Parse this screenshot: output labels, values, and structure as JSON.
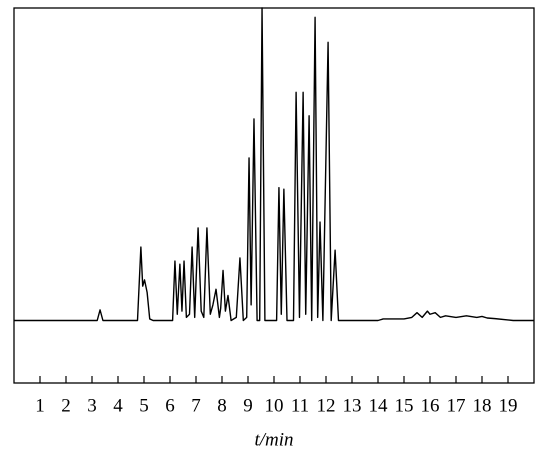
{
  "chart_data": {
    "type": "line",
    "x_label": "t/min",
    "xlim": [
      0,
      20
    ],
    "ylim": [
      -20,
      100
    ],
    "xticks": [
      1,
      2,
      3,
      4,
      5,
      6,
      7,
      8,
      9,
      10,
      11,
      12,
      13,
      14,
      15,
      16,
      17,
      18,
      19
    ],
    "color": "#000000",
    "x": [
      0,
      3.2,
      3.31,
      3.42,
      4.75,
      4.88,
      4.95,
      5.02,
      5.12,
      5.22,
      5.35,
      6.1,
      6.19,
      6.28,
      6.38,
      6.46,
      6.54,
      6.63,
      6.75,
      6.85,
      6.95,
      7.08,
      7.2,
      7.3,
      7.42,
      7.55,
      7.65,
      7.77,
      7.9,
      7.95,
      8.04,
      8.13,
      8.23,
      8.35,
      8.55,
      8.69,
      8.82,
      8.95,
      9.04,
      9.12,
      9.23,
      9.35,
      9.45,
      9.54,
      9.65,
      10.1,
      10.19,
      10.28,
      10.38,
      10.5,
      10.75,
      10.85,
      10.98,
      11.12,
      11.22,
      11.35,
      11.45,
      11.58,
      11.68,
      11.77,
      11.88,
      12.08,
      12.2,
      12.35,
      12.48,
      14,
      14.2,
      15,
      15.3,
      15.5,
      15.7,
      15.9,
      16,
      16.2,
      16.4,
      16.6,
      17,
      17.4,
      17.8,
      18,
      18.2,
      18.5,
      19.2,
      20
    ],
    "values": [
      0,
      0,
      3.4,
      0,
      0,
      23.5,
      11,
      13,
      9,
      0.5,
      0,
      0,
      19,
      2,
      18,
      3,
      19,
      1,
      2,
      23.5,
      1,
      29.6,
      3,
      1,
      29.6,
      2,
      5,
      10,
      1,
      4,
      16,
      3,
      8,
      0,
      1,
      20,
      0,
      1,
      52,
      5,
      64.5,
      0,
      0,
      100,
      0,
      0,
      42.5,
      2,
      42,
      0,
      0,
      73,
      1,
      73,
      2,
      65.5,
      0,
      97,
      1,
      31.5,
      0,
      89,
      0,
      22.5,
      0,
      0,
      0.5,
      0.5,
      1,
      2.5,
      1,
      3,
      2,
      2.5,
      1,
      1.5,
      1,
      1.5,
      1,
      1.3,
      0.8,
      0.6,
      0,
      0
    ]
  }
}
